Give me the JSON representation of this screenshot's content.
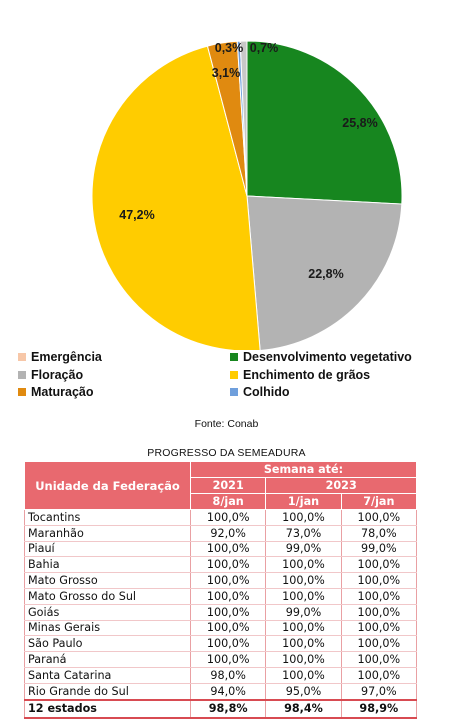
{
  "chart_data": {
    "type": "pie",
    "slices": [
      {
        "label": "Emergência",
        "value": 0.0,
        "color": "#f7c7a8",
        "display": ""
      },
      {
        "label": "Desenvolvimento vegetativo",
        "value": 25.8,
        "color": "#17861f",
        "display": "25,8%"
      },
      {
        "label": "Floração",
        "value": 22.8,
        "color": "#b3b3b3",
        "display": "22,8%"
      },
      {
        "label": "Enchimento de grãos",
        "value": 47.2,
        "color": "#ffcc00",
        "display": "47,2%"
      },
      {
        "label": "Maturação",
        "value": 3.1,
        "color": "#e08a10",
        "display": "3,1%"
      },
      {
        "label": "Colhido",
        "value": 0.3,
        "color": "#6f9fdc",
        "display": "0,3%"
      }
    ],
    "extra_labels": [
      "0,7%"
    ],
    "legend_position": "bottom"
  },
  "source": "Fonte: Conab",
  "table": {
    "title": "PROGRESSO DA SEMEADURA",
    "header_unit": "Unidade da Federação",
    "header_week": "Semana até:",
    "years": [
      "2021",
      "2023"
    ],
    "dates": [
      "8/jan",
      "1/jan",
      "7/jan"
    ],
    "rows": [
      [
        "Tocantins",
        "100,0%",
        "100,0%",
        "100,0%"
      ],
      [
        "Maranhão",
        "92,0%",
        "73,0%",
        "78,0%"
      ],
      [
        "Piauí",
        "100,0%",
        "99,0%",
        "99,0%"
      ],
      [
        "Bahia",
        "100,0%",
        "100,0%",
        "100,0%"
      ],
      [
        "Mato Grosso",
        "100,0%",
        "100,0%",
        "100,0%"
      ],
      [
        "Mato Grosso do Sul",
        "100,0%",
        "100,0%",
        "100,0%"
      ],
      [
        "Goiás",
        "100,0%",
        "99,0%",
        "100,0%"
      ],
      [
        "Minas Gerais",
        "100,0%",
        "100,0%",
        "100,0%"
      ],
      [
        "São Paulo",
        "100,0%",
        "100,0%",
        "100,0%"
      ],
      [
        "Paraná",
        "100,0%",
        "100,0%",
        "100,0%"
      ],
      [
        "Santa Catarina",
        "98,0%",
        "100,0%",
        "100,0%"
      ],
      [
        "Rio Grande do Sul",
        "94,0%",
        "95,0%",
        "97,0%"
      ]
    ],
    "total": [
      "12 estados",
      "98,8%",
      "98,4%",
      "98,9%"
    ]
  }
}
